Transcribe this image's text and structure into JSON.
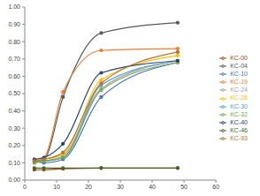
{
  "chart_data": {
    "type": "line",
    "x": [
      3,
      6,
      12,
      24,
      48
    ],
    "xlim": [
      0,
      60
    ],
    "xticks": [
      0,
      10,
      20,
      30,
      40,
      50,
      60
    ],
    "ylim": [
      0,
      1
    ],
    "yticks": [
      {
        "value": 0,
        "label": "0.00"
      },
      {
        "value": 0.1,
        "label": "0.10"
      },
      {
        "value": 0.2,
        "label": "0.20"
      },
      {
        "value": 0.3,
        "label": "0.30"
      },
      {
        "value": 0.4,
        "label": "0.40"
      },
      {
        "value": 0.5,
        "label": "0.50"
      },
      {
        "value": 0.6,
        "label": "0.60"
      },
      {
        "value": 0.7,
        "label": "0.70"
      },
      {
        "value": 0.8,
        "label": "0.80"
      },
      {
        "value": 0.9,
        "label": "0.90"
      },
      {
        "value": 1,
        "label": "1.00"
      }
    ],
    "grid": false,
    "legend": "right",
    "marker": "circle",
    "series": [
      {
        "name": "KC-00",
        "color": "#9e480e",
        "values": [
          0.06,
          0.06,
          0.065,
          0.07,
          0.07
        ]
      },
      {
        "name": "KC-04",
        "color": "#595959",
        "values": [
          0.11,
          0.12,
          0.48,
          0.85,
          0.91
        ]
      },
      {
        "name": "KC-10",
        "color": "#4472c4",
        "values": [
          0.11,
          0.1,
          0.12,
          0.48,
          0.68
        ]
      },
      {
        "name": "KC-19",
        "color": "#ed7d31",
        "values": [
          0.12,
          0.13,
          0.51,
          0.75,
          0.76
        ]
      },
      {
        "name": "KC-24",
        "color": "#a5a5a5",
        "values": [
          0.1,
          0.11,
          0.14,
          0.53,
          0.69
        ]
      },
      {
        "name": "KC-26",
        "color": "#ffc000",
        "values": [
          0.11,
          0.12,
          0.15,
          0.58,
          0.72
        ]
      },
      {
        "name": "KC-30",
        "color": "#5b9bd5",
        "values": [
          0.11,
          0.11,
          0.13,
          0.55,
          0.69
        ]
      },
      {
        "name": "KC-32",
        "color": "#70ad47",
        "values": [
          0.1,
          0.11,
          0.13,
          0.52,
          0.68
        ]
      },
      {
        "name": "KC-40",
        "color": "#264478",
        "values": [
          0.12,
          0.13,
          0.21,
          0.62,
          0.69
        ]
      },
      {
        "name": "KC-46",
        "color": "#43682b",
        "values": [
          0.07,
          0.07,
          0.07,
          0.07,
          0.07
        ]
      },
      {
        "name": "KC-93",
        "color": "#b7742c",
        "values": [
          0.11,
          0.12,
          0.16,
          0.56,
          0.74
        ]
      }
    ]
  }
}
